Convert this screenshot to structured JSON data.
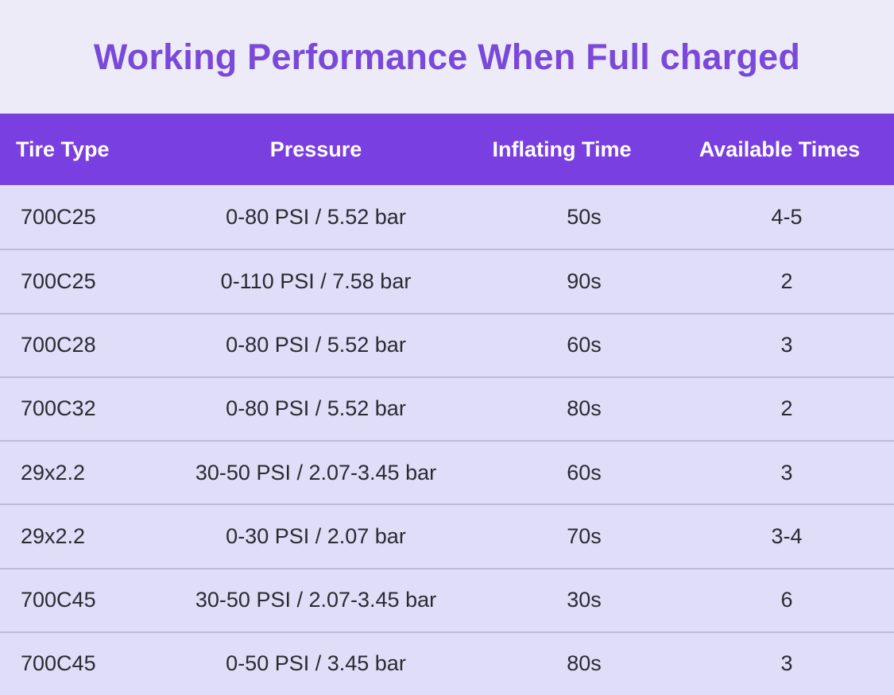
{
  "title": "Working Performance When Full charged",
  "colors": {
    "page_background": "#edebf8",
    "title_text": "#7a49d9",
    "header_background": "#7a3fe0",
    "header_text": "#ffffff",
    "row_background": "#dfddf7",
    "row_divider": "#bebbd6",
    "cell_text": "#2b2a33"
  },
  "chart_data": {
    "type": "table",
    "title": "Working Performance When Full charged",
    "columns": [
      "Tire Type",
      "Pressure",
      "Inflating Time",
      "Available Times"
    ],
    "rows": [
      [
        "700C25",
        "0-80 PSI / 5.52 bar",
        "50s",
        "4-5"
      ],
      [
        "700C25",
        "0-110 PSI / 7.58 bar",
        "90s",
        "2"
      ],
      [
        "700C28",
        "0-80 PSI / 5.52 bar",
        "60s",
        "3"
      ],
      [
        "700C32",
        "0-80 PSI / 5.52 bar",
        "80s",
        "2"
      ],
      [
        "29x2.2",
        "30-50 PSI / 2.07-3.45 bar",
        "60s",
        "3"
      ],
      [
        "29x2.2",
        "0-30 PSI / 2.07 bar",
        "70s",
        "3-4"
      ],
      [
        "700C45",
        "30-50 PSI / 2.07-3.45 bar",
        "30s",
        "6"
      ],
      [
        "700C45",
        "0-50 PSI / 3.45 bar",
        "80s",
        "3"
      ]
    ]
  }
}
